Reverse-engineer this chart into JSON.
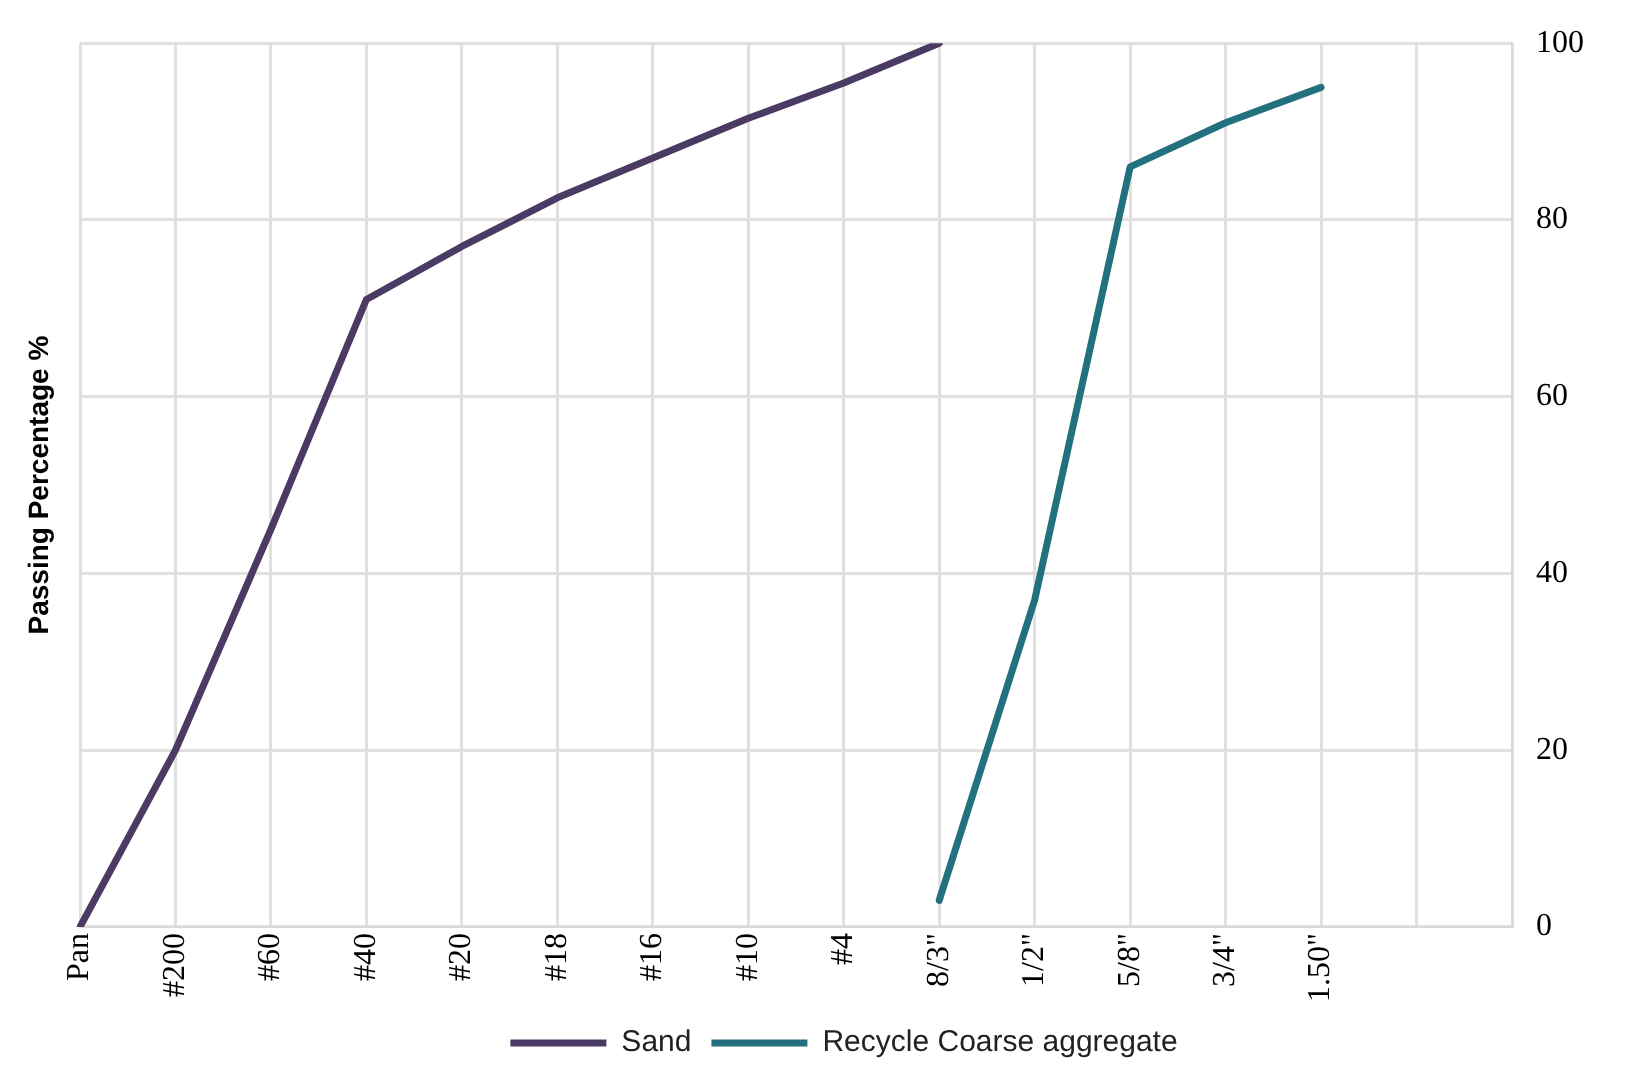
{
  "chart_data": {
    "type": "line",
    "ylabel": "Passing Percentage %",
    "categories": [
      "Pan",
      "#200",
      "#60",
      "#40",
      "#20",
      "#18",
      "#16",
      "#10",
      "#4",
      "8/3\"",
      "1/2\"",
      "5/8\"",
      "3/4\"",
      "1.50\"",
      null,
      null
    ],
    "ylim": [
      0,
      100
    ],
    "yticks": [
      0,
      20,
      40,
      60,
      80,
      100
    ],
    "grid": true,
    "legend": "bottom",
    "marker": "none",
    "line_style": "solid",
    "series": [
      {
        "name": "Sand",
        "color": "#4b3a63",
        "values": [
          0,
          20,
          45,
          71,
          77,
          82.5,
          87,
          91.5,
          95.5,
          100,
          null,
          null,
          null,
          null,
          null,
          null
        ]
      },
      {
        "name": "Recycle Coarse aggregate",
        "color": "#23707f",
        "values": [
          null,
          null,
          null,
          null,
          null,
          null,
          null,
          null,
          null,
          3,
          37,
          86,
          91,
          95,
          null,
          null
        ]
      }
    ]
  }
}
